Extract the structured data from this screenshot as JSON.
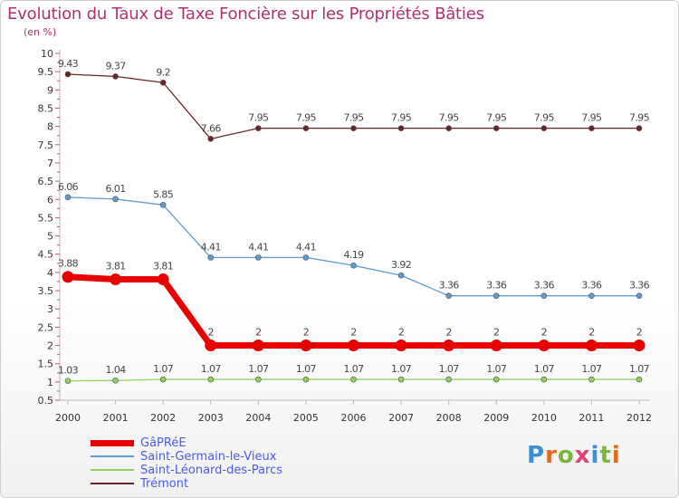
{
  "title": "Evolution du Taux de Taxe Foncière sur les Propriétés Bâties",
  "subtitle": "(en %)",
  "logo": "Proxiti",
  "chart_data": {
    "type": "line",
    "title": "Evolution du Taux de Taxe Foncière sur les Propriétés Bâties",
    "ylabel": "(en %)",
    "xlabel": "",
    "ylim": [
      0.5,
      10
    ],
    "x": [
      "2000",
      "2001",
      "2002",
      "2003",
      "2004",
      "2005",
      "2006",
      "2007",
      "2008",
      "2009",
      "2010",
      "2011",
      "2012"
    ],
    "y_ticks": [
      "0.5",
      "1",
      "1.5",
      "2",
      "2.5",
      "3",
      "3.5",
      "4",
      "4.5",
      "5",
      "5.5",
      "6",
      "6.5",
      "7",
      "7.5",
      "8",
      "8.5",
      "9",
      "9.5",
      "10"
    ],
    "grid": false,
    "legend_position": "bottom-left",
    "series": [
      {
        "name": "GâPRéE",
        "color": "#e80000",
        "values": [
          3.88,
          3.81,
          3.81,
          2,
          2,
          2,
          2,
          2,
          2,
          2,
          2,
          2,
          2
        ],
        "labels": [
          "3.88",
          "3.81",
          "3.81",
          "2",
          "2",
          "2",
          "2",
          "2",
          "2",
          "2",
          "2",
          "2",
          "2"
        ]
      },
      {
        "name": "Saint-Germain-le-Vieux",
        "color": "#5d9bd0",
        "values": [
          6.06,
          6.01,
          5.85,
          4.41,
          4.41,
          4.41,
          4.19,
          3.92,
          3.36,
          3.36,
          3.36,
          3.36,
          3.36
        ],
        "labels": [
          "6.06",
          "6.01",
          "5.85",
          "4.41",
          "4.41",
          "4.41",
          "4.19",
          "3.92",
          "3.36",
          "3.36",
          "3.36",
          "3.36",
          "3.36"
        ]
      },
      {
        "name": "Saint-Léonard-des-Parcs",
        "color": "#8ed25a",
        "values": [
          1.03,
          1.04,
          1.07,
          1.07,
          1.07,
          1.07,
          1.07,
          1.07,
          1.07,
          1.07,
          1.07,
          1.07,
          1.07
        ],
        "labels": [
          "1.03",
          "1.04",
          "1.07",
          "1.07",
          "1.07",
          "1.07",
          "1.07",
          "1.07",
          "1.07",
          "1.07",
          "1.07",
          "1.07",
          "1.07"
        ]
      },
      {
        "name": "Trémont",
        "color": "#6b2424",
        "values": [
          9.43,
          9.37,
          9.2,
          7.66,
          7.95,
          7.95,
          7.95,
          7.95,
          7.95,
          7.95,
          7.95,
          7.95,
          7.95
        ],
        "labels": [
          "9.43",
          "9.37",
          "9.2",
          "7.66",
          "7.95",
          "7.95",
          "7.95",
          "7.95",
          "7.95",
          "7.95",
          "7.95",
          "7.95",
          "7.95"
        ]
      }
    ]
  }
}
